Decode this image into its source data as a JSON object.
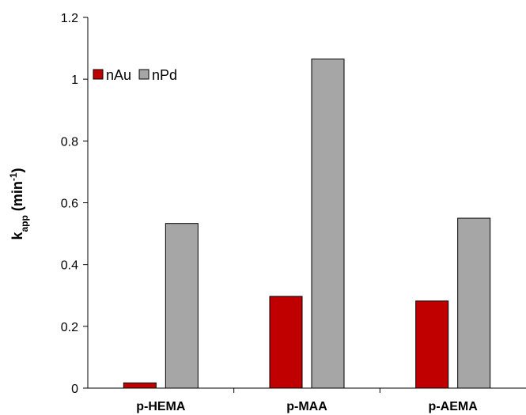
{
  "chart_data": {
    "type": "bar",
    "categories": [
      "p-HEMA",
      "p-MAA",
      "p-AEMA"
    ],
    "series": [
      {
        "name": "nAu",
        "values": [
          0.017,
          0.297,
          0.282
        ],
        "color": "#c00000"
      },
      {
        "name": "nPd",
        "values": [
          0.533,
          1.065,
          0.55
        ],
        "color": "#a6a6a6"
      }
    ],
    "ylabel": {
      "main": "k",
      "sub": "app",
      "rest": " (min",
      "sup": "-1",
      "close": ")"
    },
    "ylim": [
      0,
      1.2
    ],
    "yticks": [
      0,
      0.2,
      0.4,
      0.6,
      0.8,
      1,
      1.2
    ],
    "ytick_labels": [
      "0",
      "0.2",
      "0.4",
      "0.6",
      "0.8",
      "1",
      "1.2"
    ],
    "grid": false,
    "legend_position": "top-left"
  }
}
